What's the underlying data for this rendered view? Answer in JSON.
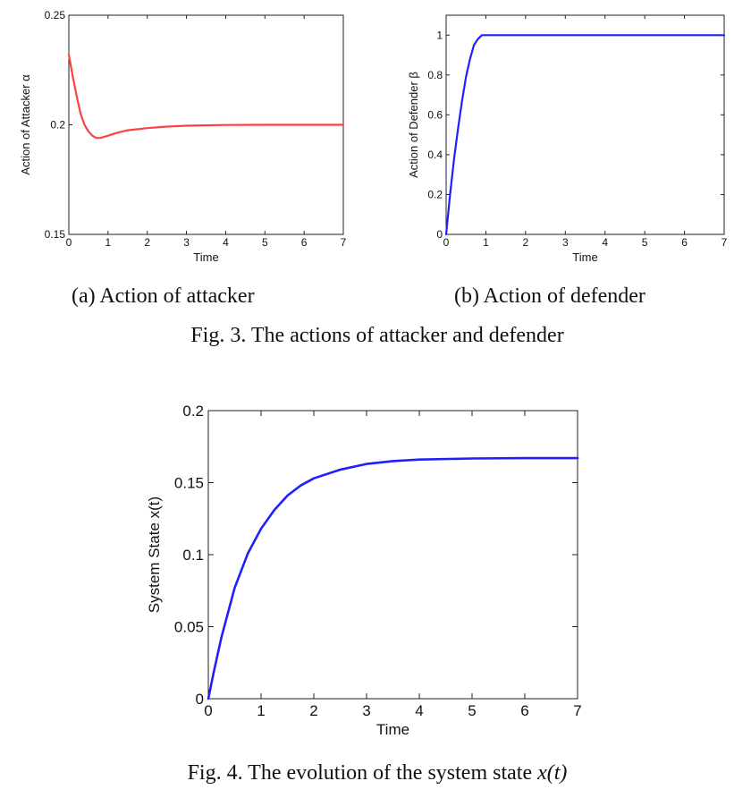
{
  "subcaptions": {
    "a": "(a)  Action of attacker",
    "b": "(b)  Action of defender"
  },
  "fig3_caption": "Fig. 3.    The actions of attacker and defender",
  "fig4_caption": {
    "text": "Fig. 4.    The evolution of the system state ",
    "math": "x(t)"
  },
  "colors": {
    "attacker": "#ff4040",
    "defender": "#2020ff",
    "state": "#2020ff"
  },
  "chart_data": [
    {
      "id": "attacker",
      "type": "line",
      "xlabel": "Time",
      "ylabel": "Action of Attacker α",
      "xlim": [
        0,
        7
      ],
      "ylim": [
        0.15,
        0.25
      ],
      "xticks": [
        "0",
        "1",
        "2",
        "3",
        "4",
        "5",
        "6",
        "7"
      ],
      "yticks": [
        "0.15",
        "0.2",
        "0.25"
      ],
      "series": [
        {
          "color": "#ff4040",
          "x": [
            0,
            0.1,
            0.2,
            0.3,
            0.4,
            0.5,
            0.6,
            0.7,
            0.8,
            0.9,
            1.0,
            1.2,
            1.5,
            2.0,
            2.5,
            3.0,
            4.0,
            5.0,
            6.0,
            7.0
          ],
          "y": [
            0.232,
            0.222,
            0.213,
            0.205,
            0.2,
            0.197,
            0.195,
            0.194,
            0.194,
            0.1945,
            0.195,
            0.1962,
            0.1975,
            0.1985,
            0.1992,
            0.1996,
            0.1999,
            0.2,
            0.2,
            0.2
          ]
        }
      ]
    },
    {
      "id": "defender",
      "type": "line",
      "xlabel": "Time",
      "ylabel": "Action of Defender β",
      "xlim": [
        0,
        7
      ],
      "ylim": [
        0,
        1.1
      ],
      "xticks": [
        "0",
        "1",
        "2",
        "3",
        "4",
        "5",
        "6",
        "7"
      ],
      "yticks": [
        "0",
        "0.2",
        "0.4",
        "0.6",
        "0.8",
        "1"
      ],
      "series": [
        {
          "color": "#2020ff",
          "x": [
            0,
            0.1,
            0.2,
            0.3,
            0.4,
            0.5,
            0.6,
            0.7,
            0.8,
            0.9,
            1.0,
            2.0,
            3.0,
            4.0,
            5.0,
            6.0,
            7.0
          ],
          "y": [
            0,
            0.2,
            0.38,
            0.53,
            0.67,
            0.79,
            0.88,
            0.95,
            0.98,
            1.0,
            1.0,
            1.0,
            1.0,
            1.0,
            1.0,
            1.0,
            1.0
          ]
        }
      ]
    },
    {
      "id": "state",
      "type": "line",
      "xlabel": "Time",
      "ylabel": "System State x(t)",
      "xlim": [
        0,
        7
      ],
      "ylim": [
        0,
        0.2
      ],
      "xticks": [
        "0",
        "1",
        "2",
        "3",
        "4",
        "5",
        "6",
        "7"
      ],
      "yticks": [
        "0",
        "0.05",
        "0.1",
        "0.15",
        "0.2"
      ],
      "series": [
        {
          "color": "#2020ff",
          "x": [
            0,
            0.1,
            0.25,
            0.5,
            0.75,
            1.0,
            1.25,
            1.5,
            1.75,
            2.0,
            2.5,
            3.0,
            3.5,
            4.0,
            5.0,
            6.0,
            7.0
          ],
          "y": [
            0,
            0.018,
            0.043,
            0.077,
            0.101,
            0.118,
            0.131,
            0.141,
            0.148,
            0.153,
            0.159,
            0.163,
            0.165,
            0.166,
            0.1668,
            0.167,
            0.167
          ]
        }
      ]
    }
  ]
}
